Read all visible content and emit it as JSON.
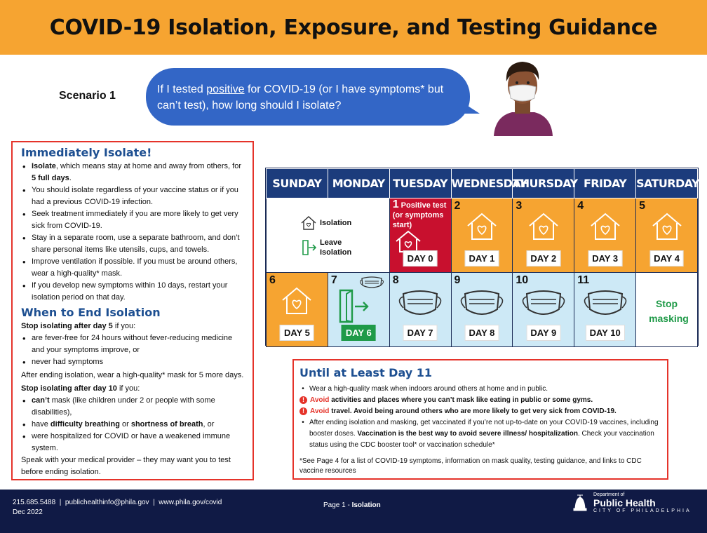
{
  "header": {
    "title": "COVID-19 Isolation, Exposure, and Testing Guidance"
  },
  "scenario": {
    "label": "Scenario 1",
    "question_pre": "If I tested ",
    "question_u": "positive",
    "question_post": " for COVID-19 (or I have symptoms* but can’t test), how long should I isolate?"
  },
  "left": {
    "isolate_title": "Immediately Isolate!",
    "b1_bold": "Isolate",
    "b1_text": ", which means stay at home and away from others, for ",
    "b1_bold2": "5 full days",
    "b1_end": ".",
    "b2": "You should isolate regardless of your vaccine status or if you had a previous COVID-19 infection.",
    "b3": "Seek treatment immediately if you are more likely to get very sick from COVID-19.",
    "b4": "Stay in a separate room, use a separate bathroom, and don’t share personal items like utensils, cups, and towels.",
    "b5": "Improve ventilation if possible. If you must be around others, wear a high-quality* mask.",
    "b6": "If you develop new symptoms within 10 days, restart your isolation period on that day.",
    "end_title": "When to End Isolation",
    "stop5_bold": "Stop isolating after day 5",
    "stop5_text": " if you:",
    "e1": "are fever-free for 24 hours without fever-reducing medicine and your symptoms improve, or",
    "e2": "never had symptoms",
    "after": "After ending isolation, wear a high-quality* mask for 5 more days.",
    "stop10_bold": "Stop isolating after day 10",
    "stop10_text": " if you:",
    "f1_bold": "can’t",
    "f1_text": " mask (like children under 2 or people with some disabilities),",
    "f2_pre": "have ",
    "f2_bold1": "difficulty breathing",
    "f2_mid": " or ",
    "f2_bold2": "shortness of breath",
    "f2_end": ", or",
    "f3": "were hospitalized for COVID or have a weakened immune system.",
    "speak": "Speak with your medical provider – they may want you to test before ending isolation."
  },
  "calendar": {
    "days": [
      "SUNDAY",
      "MONDAY",
      "TUESDAY",
      "WEDNESDAY",
      "THURSDAY",
      "FRIDAY",
      "SATURDAY"
    ],
    "legend_isolation": "Isolation",
    "legend_leave": "Leave Isolation",
    "positive_num": "1",
    "positive_label": "Positive test (or symptoms start)",
    "row1": [
      {
        "num": "2",
        "label": "DAY 1"
      },
      {
        "num": "3",
        "label": "DAY 2"
      },
      {
        "num": "4",
        "label": "DAY 3"
      },
      {
        "num": "5",
        "label": "DAY 4"
      }
    ],
    "day0": "DAY 0",
    "row2": [
      {
        "num": "6",
        "label": "DAY 5"
      },
      {
        "num": "7",
        "label": "DAY 6"
      },
      {
        "num": "8",
        "label": "DAY 7"
      },
      {
        "num": "9",
        "label": "DAY 8"
      },
      {
        "num": "10",
        "label": "DAY 9"
      },
      {
        "num": "11",
        "label": "DAY 10"
      }
    ],
    "stop_masking": "Stop masking"
  },
  "until": {
    "title": "Until at Least Day 11",
    "u1": "Wear a high-quality mask when indoors around others at home and in public.",
    "u2_red": "Avoid",
    "u2_bold": " activities and places where you can’t mask like eating in public or some gyms.",
    "u3_red": "Avoid",
    "u3_bold": " travel. Avoid being around others who are more likely to get very sick from COVID-19.",
    "u4_a": "After ending isolation and masking, get vaccinated if you’re not up-to-date on your COVID-19 vaccines, including booster doses. ",
    "u4_b": "Vaccination is the best way to avoid severe illness/ hospitalization",
    "u4_c": ". Check your vaccination status using the CDC booster tool* or vaccination schedule*",
    "note": "*See Page 4 for a list of COVID-19 symptoms, information on mask quality, testing guidance, and links to CDC vaccine resources"
  },
  "footer": {
    "contact": "215.685.5488  |  publichealthinfo@phila.gov  |  www.phila.gov/covid",
    "date": "Dec 2022",
    "page_pre": "Page 1 - ",
    "page_bold": "Isolation",
    "logo1": "Department of",
    "logo2": "Public Health",
    "logo3": "CITY OF PHILADELPHIA"
  },
  "colors": {
    "orange": "#f6a431",
    "navy": "#1c3c7c",
    "red": "#e5332a",
    "lightblue": "#cde9f6",
    "green": "#1f9a48"
  }
}
